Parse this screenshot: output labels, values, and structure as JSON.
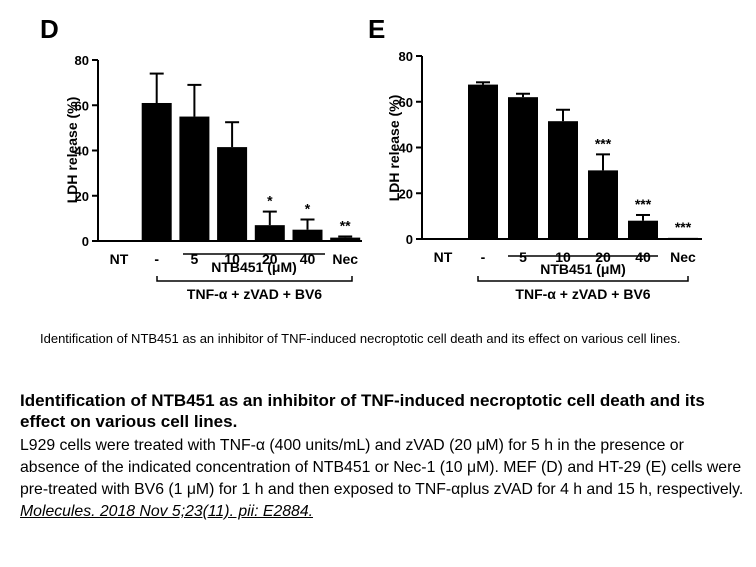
{
  "chart_data": [
    {
      "type": "bar",
      "panel": "D",
      "categories": [
        "NT",
        "-",
        "5",
        "10",
        "20",
        "40",
        "Nec"
      ],
      "values": [
        0,
        61,
        55,
        41.5,
        7,
        5,
        1.5
      ],
      "errors": [
        0,
        13,
        14,
        11,
        6,
        4.5,
        0.5
      ],
      "significance": [
        "",
        "",
        "",
        "",
        "*",
        "*",
        "**"
      ],
      "ylabel": "LDH release (%)",
      "ylim": [
        0,
        80
      ],
      "yticks": [
        0,
        20,
        40,
        60,
        80
      ],
      "bracket_labels": [
        "NTB451 (μM)",
        "TNF-α + zVAD + BV6"
      ],
      "grid": false
    },
    {
      "type": "bar",
      "panel": "E",
      "categories": [
        "NT",
        "-",
        "5",
        "10",
        "20",
        "40",
        "Nec"
      ],
      "values": [
        0,
        67.5,
        62,
        51.5,
        30,
        8,
        0.5
      ],
      "errors": [
        0,
        1,
        1.5,
        5,
        7,
        2.5,
        0
      ],
      "significance": [
        "",
        "",
        "",
        "",
        "***",
        "***",
        "***"
      ],
      "ylabel": "LDH release (%)",
      "ylim": [
        0,
        80
      ],
      "yticks": [
        0,
        20,
        40,
        60,
        80
      ],
      "bracket_labels": [
        "NTB451 (μM)",
        "TNF-α + zVAD + BV6"
      ],
      "grid": false
    }
  ],
  "caption": {
    "small": "Identification of NTB451 as an inhibitor of TNF-induced necroptotic cell death and its effect on various cell lines.",
    "title": "Identification of NTB451 as an inhibitor of TNF-induced necroptotic cell death and its effect on various cell lines.",
    "body": "L929 cells were treated with TNF-α (400 units/mL) and zVAD (20 μM) for 5 h in the presence or absence of the indicated concentration of NTB451 or Nec-1 (10 μM). MEF (D) and HT-29 (E) cells were pre-treated with BV6 (1 μM) for 1 h and then exposed to TNF-αplus zVAD for 4 h and 15 h, respectively.",
    "citation": "Molecules. 2018 Nov 5;23(11). pii: E2884."
  }
}
